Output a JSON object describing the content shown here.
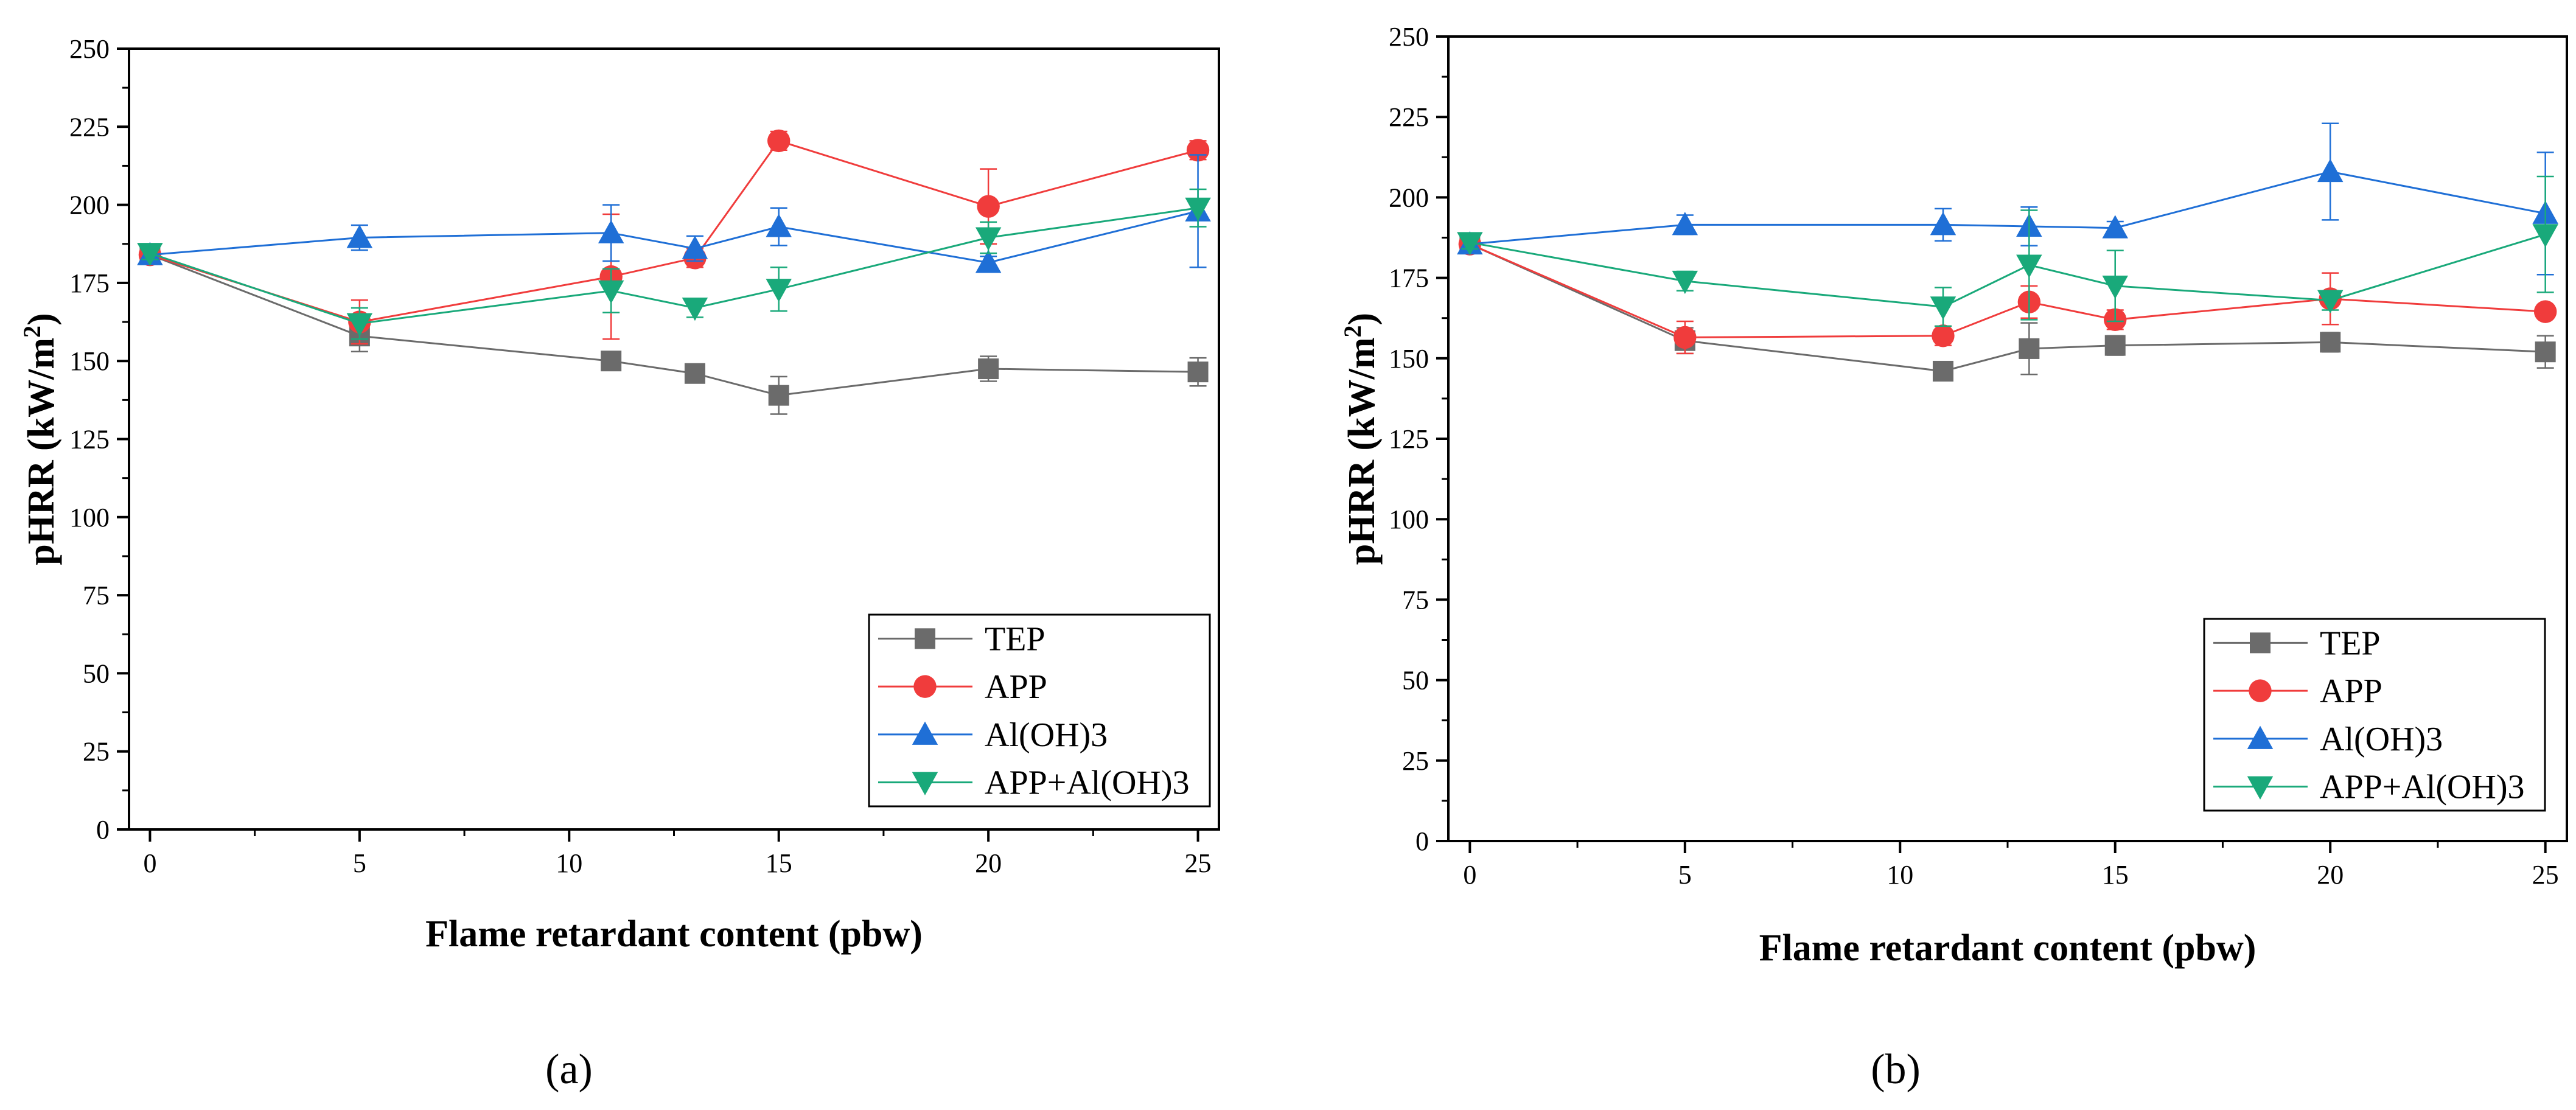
{
  "chart_data": [
    {
      "type": "line",
      "panel_label": "(a)",
      "xlabel": "Flame retardant content (pbw)",
      "ylabel_prefix": "pHRR (kW/m",
      "ylabel_sup": "2",
      "ylabel_suffix": ")",
      "xlim": [
        -0.5,
        25.5
      ],
      "ylim": [
        0,
        250
      ],
      "xticks": [
        0,
        5,
        10,
        15,
        20,
        25
      ],
      "yticks": [
        0,
        25,
        50,
        75,
        100,
        125,
        150,
        175,
        200,
        225,
        250
      ],
      "grid": false,
      "legend_position": "bottom-right",
      "series": [
        {
          "name": "TEP",
          "color": "#6b6b6b",
          "marker": "square",
          "x": [
            0,
            5,
            11,
            13,
            15,
            20,
            25
          ],
          "y": [
            184,
            158,
            150,
            146,
            139,
            147.5,
            146.5
          ],
          "err": [
            2,
            5,
            2,
            2,
            6,
            4,
            4.5
          ]
        },
        {
          "name": "APP",
          "color": "#f03c3c",
          "marker": "circle",
          "x": [
            0,
            5,
            11,
            13,
            15,
            20,
            25
          ],
          "y": [
            184,
            162.5,
            177,
            183,
            220.5,
            199.5,
            217.5
          ],
          "err": [
            2,
            7,
            20,
            3,
            3,
            12,
            3
          ]
        },
        {
          "name": "Al(OH)3",
          "color": "#1f6fd6",
          "marker": "triangle-up",
          "x": [
            0,
            5,
            11,
            13,
            15,
            20,
            25
          ],
          "y": [
            184,
            189.5,
            191,
            186,
            193,
            181.5,
            198
          ],
          "err": [
            2,
            4,
            9,
            4,
            6,
            2,
            18
          ]
        },
        {
          "name": "APP+Al(OH)3",
          "color": "#19a97a",
          "marker": "triangle-down",
          "x": [
            0,
            5,
            11,
            13,
            15,
            20,
            25
          ],
          "y": [
            184.5,
            162,
            172.5,
            167,
            173,
            189.5,
            199
          ],
          "err": [
            2,
            5,
            7,
            3,
            7,
            5,
            6
          ]
        }
      ]
    },
    {
      "type": "line",
      "panel_label": "(b)",
      "xlabel": "Flame retardant content (pbw)",
      "ylabel_prefix": "pHRR (kW/m",
      "ylabel_sup": "2",
      "ylabel_suffix": ")",
      "xlim": [
        -0.5,
        25.5
      ],
      "ylim": [
        0,
        250
      ],
      "xticks": [
        0,
        5,
        10,
        15,
        20,
        25
      ],
      "yticks": [
        0,
        25,
        50,
        75,
        100,
        125,
        150,
        175,
        200,
        225,
        250
      ],
      "grid": false,
      "legend_position": "bottom-right",
      "series": [
        {
          "name": "TEP",
          "color": "#6b6b6b",
          "marker": "square",
          "x": [
            0,
            5,
            11,
            13,
            15,
            20,
            25
          ],
          "y": [
            185.5,
            155.5,
            146,
            153,
            154,
            155,
            152
          ],
          "err": [
            2,
            4,
            2,
            8,
            3,
            3,
            5
          ]
        },
        {
          "name": "APP",
          "color": "#f03c3c",
          "marker": "circle",
          "x": [
            0,
            5,
            11,
            13,
            15,
            20,
            25
          ],
          "y": [
            185.5,
            156.5,
            157,
            167.5,
            162,
            168.5,
            164.5
          ],
          "err": [
            2,
            5,
            3,
            5,
            3,
            8,
            2
          ]
        },
        {
          "name": "Al(OH)3",
          "color": "#1f6fd6",
          "marker": "triangle-up",
          "x": [
            0,
            5,
            11,
            13,
            15,
            20,
            25
          ],
          "y": [
            185.5,
            191.5,
            191.5,
            191,
            190.5,
            208,
            195
          ],
          "err": [
            2,
            3,
            5,
            6,
            2,
            15,
            19
          ]
        },
        {
          "name": "APP+Al(OH)3",
          "color": "#19a97a",
          "marker": "triangle-down",
          "x": [
            0,
            5,
            11,
            13,
            15,
            20,
            25
          ],
          "y": [
            186,
            174,
            166,
            179,
            172.5,
            168,
            188.5
          ],
          "err": [
            2,
            3,
            6,
            17,
            11,
            3,
            18
          ]
        }
      ]
    }
  ]
}
